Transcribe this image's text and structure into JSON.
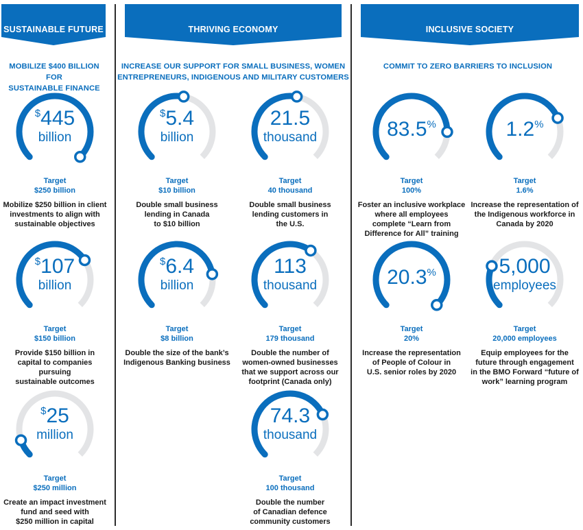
{
  "colors": {
    "accent": "#0a6ebd",
    "track": "#e3e4e6",
    "divider": "#2b2b2b"
  },
  "sections": [
    {
      "title": "SUSTAINABLE FUTURE",
      "subtitle_lines": [
        "MOBILIZE $400 BILLION FOR",
        "SUSTAINABLE FINANCE"
      ]
    },
    {
      "title": "THRIVING ECONOMY",
      "subtitle_lines": [
        "INCREASE OUR SUPPORT FOR SMALL BUSINESS, WOMEN",
        "ENTREPRENEURS, INDIGENOUS AND MILITARY CUSTOMERS"
      ]
    },
    {
      "title": "INCLUSIVE SOCIETY",
      "subtitle_lines": [
        "COMMIT TO ZERO BARRIERS TO INCLUSION"
      ]
    }
  ],
  "metrics": [
    {
      "prefix": "$",
      "value": "445",
      "suffix": "",
      "unit": "billion",
      "progress": 1.0,
      "target_label": "Target",
      "target": "$250 billion",
      "description": [
        "Mobilize $250 billion in client",
        "investments to align with",
        "sustainable objectives"
      ]
    },
    {
      "prefix": "$",
      "value": "107",
      "suffix": "",
      "unit": "billion",
      "progress": 0.71,
      "target_label": "Target",
      "target": "$150 billion",
      "description": [
        "Provide $150 billion in",
        "capital to companies pursuing",
        "sustainable outcomes"
      ]
    },
    {
      "prefix": "$",
      "value": "25",
      "suffix": "",
      "unit": "million",
      "progress": 0.1,
      "target_label": "Target",
      "target": "$250 million",
      "description": [
        "Create an impact investment",
        "fund and seed with",
        "$250 million in capital"
      ]
    },
    {
      "prefix": "$",
      "value": "5.4",
      "suffix": "",
      "unit": "billion",
      "progress": 0.54,
      "target_label": "Target",
      "target": "$10 billion",
      "description": [
        "Double small business",
        "lending in Canada",
        "to $10 billion"
      ]
    },
    {
      "prefix": "",
      "value": "21.5",
      "suffix": "",
      "unit": "thousand",
      "progress": 0.54,
      "target_label": "Target",
      "target": "40 thousand",
      "description": [
        "Double small business",
        "lending customers in",
        "the U.S."
      ]
    },
    {
      "prefix": "$",
      "value": "6.4",
      "suffix": "",
      "unit": "billion",
      "progress": 0.8,
      "target_label": "Target",
      "target": "$8 billion",
      "description": [
        "Double the size of the bank’s",
        "Indigenous Banking business"
      ]
    },
    {
      "prefix": "",
      "value": "113",
      "suffix": "",
      "unit": "thousand",
      "progress": 0.63,
      "target_label": "Target",
      "target": "179 thousand",
      "description": [
        "Double the number of",
        "women-owned businesses",
        "that we support across our",
        "footprint (Canada only)"
      ]
    },
    {
      "prefix": "",
      "value": "74.3",
      "suffix": "",
      "unit": "thousand",
      "progress": 0.743,
      "target_label": "Target",
      "target": "100 thousand",
      "description": [
        "Double the number",
        "of Canadian defence",
        "community customers"
      ]
    },
    {
      "prefix": "",
      "value": "83.5",
      "suffix": "%",
      "unit": "",
      "progress": 0.835,
      "target_label": "Target",
      "target": "100%",
      "description": [
        "Foster an inclusive workplace",
        "where all employees",
        "complete “Learn from",
        "Difference for All” training"
      ]
    },
    {
      "prefix": "",
      "value": "1.2",
      "suffix": "%",
      "unit": "",
      "progress": 0.75,
      "target_label": "Target",
      "target": "1.6%",
      "description": [
        "Increase the representation of",
        "the Indigenous workforce in",
        "Canada by 2020"
      ]
    },
    {
      "prefix": "",
      "value": "20.3",
      "suffix": "%",
      "unit": "",
      "progress": 1.0,
      "target_label": "Target",
      "target": "20%",
      "description": [
        "Increase the representation",
        "of People of Colour in",
        "U.S. senior roles by 2020"
      ]
    },
    {
      "prefix": "",
      "value": "5,000",
      "suffix": "",
      "unit": "employees",
      "progress": 0.25,
      "target_label": "Target",
      "target": "20,000 employees",
      "description": [
        "Equip employees for the",
        "future through engagement",
        "in the BMO Forward “future of",
        "work” learning program"
      ]
    }
  ]
}
